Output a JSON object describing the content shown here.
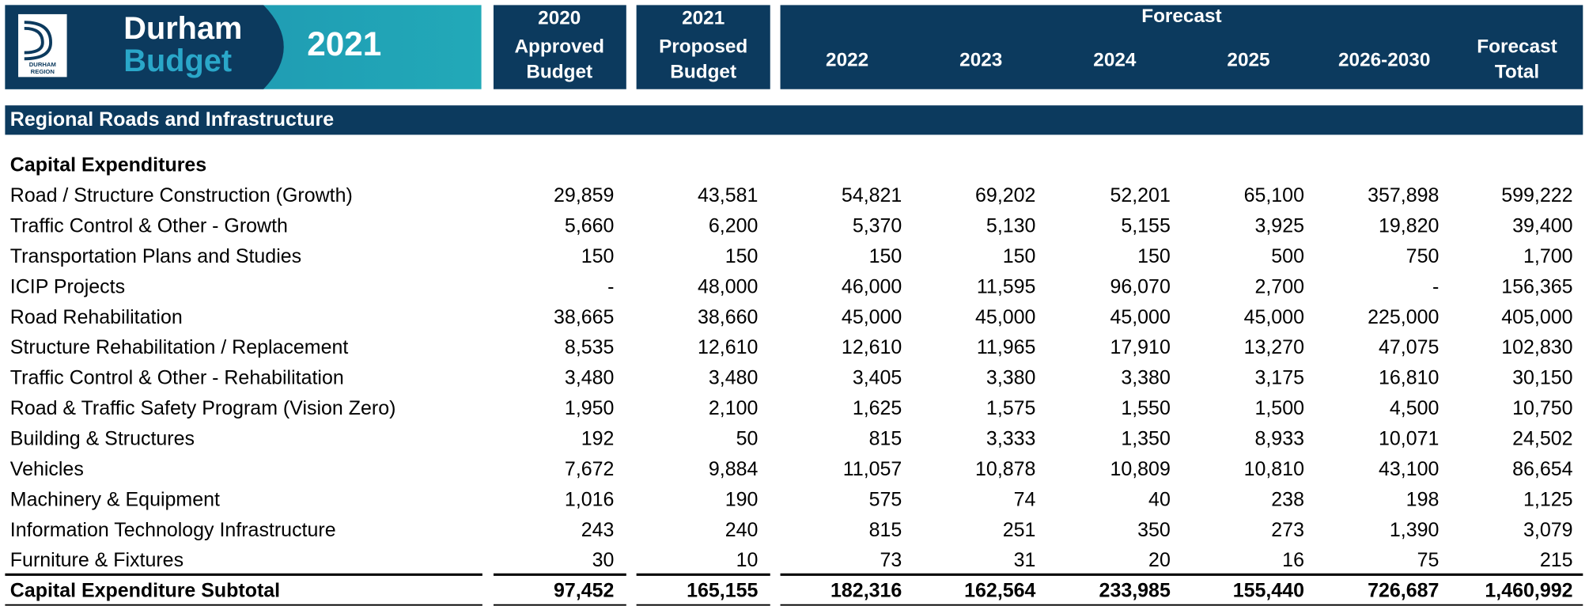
{
  "header": {
    "logo": [
      "DURHAM",
      "REGION"
    ],
    "title": [
      "Durham",
      "Budget"
    ],
    "year": "2021"
  },
  "columns": [
    [
      "2020",
      "Approved",
      "Budget"
    ],
    [
      "2021",
      "Proposed",
      "Budget"
    ],
    [
      "2022"
    ],
    [
      "2023"
    ],
    [
      "2024"
    ],
    [
      "2025"
    ],
    [
      "2026-2030"
    ],
    [
      "Forecast",
      "Total"
    ]
  ],
  "forecast_label": "Forecast",
  "section": "Regional Roads and Infrastructure",
  "group": "Capital Expenditures",
  "rows": [
    [
      "Road / Structure Construction (Growth)",
      "29,859",
      "43,581",
      "54,821",
      "69,202",
      "52,201",
      "65,100",
      "357,898",
      "599,222"
    ],
    [
      "Traffic Control & Other - Growth",
      "5,660",
      "6,200",
      "5,370",
      "5,130",
      "5,155",
      "3,925",
      "19,820",
      "39,400"
    ],
    [
      "Transportation Plans and Studies",
      "150",
      "150",
      "150",
      "150",
      "150",
      "500",
      "750",
      "1,700"
    ],
    [
      "ICIP Projects",
      "-",
      "48,000",
      "46,000",
      "11,595",
      "96,070",
      "2,700",
      "-",
      "156,365"
    ],
    [
      "Road Rehabilitation",
      "38,665",
      "38,660",
      "45,000",
      "45,000",
      "45,000",
      "45,000",
      "225,000",
      "405,000"
    ],
    [
      "Structure Rehabilitation / Replacement",
      "8,535",
      "12,610",
      "12,610",
      "11,965",
      "17,910",
      "13,270",
      "47,075",
      "102,830"
    ],
    [
      "Traffic Control & Other - Rehabilitation",
      "3,480",
      "3,480",
      "3,405",
      "3,380",
      "3,380",
      "3,175",
      "16,810",
      "30,150"
    ],
    [
      "Road & Traffic Safety Program (Vision Zero)",
      "1,950",
      "2,100",
      "1,625",
      "1,575",
      "1,550",
      "1,500",
      "4,500",
      "10,750"
    ],
    [
      "Building & Structures",
      "192",
      "50",
      "815",
      "3,333",
      "1,350",
      "8,933",
      "10,071",
      "24,502"
    ],
    [
      "Vehicles",
      "7,672",
      "9,884",
      "11,057",
      "10,878",
      "10,809",
      "10,810",
      "43,100",
      "86,654"
    ],
    [
      "Machinery & Equipment",
      "1,016",
      "190",
      "575",
      "74",
      "40",
      "238",
      "198",
      "1,125"
    ],
    [
      "Information Technology Infrastructure",
      "243",
      "240",
      "815",
      "251",
      "350",
      "273",
      "1,390",
      "3,079"
    ],
    [
      "Furniture & Fixtures",
      "30",
      "10",
      "73",
      "31",
      "20",
      "16",
      "75",
      "215"
    ]
  ],
  "subtotal": [
    "Capital Expenditure Subtotal",
    "97,452",
    "165,155",
    "182,316",
    "162,564",
    "233,985",
    "155,440",
    "726,687",
    "1,460,992"
  ]
}
